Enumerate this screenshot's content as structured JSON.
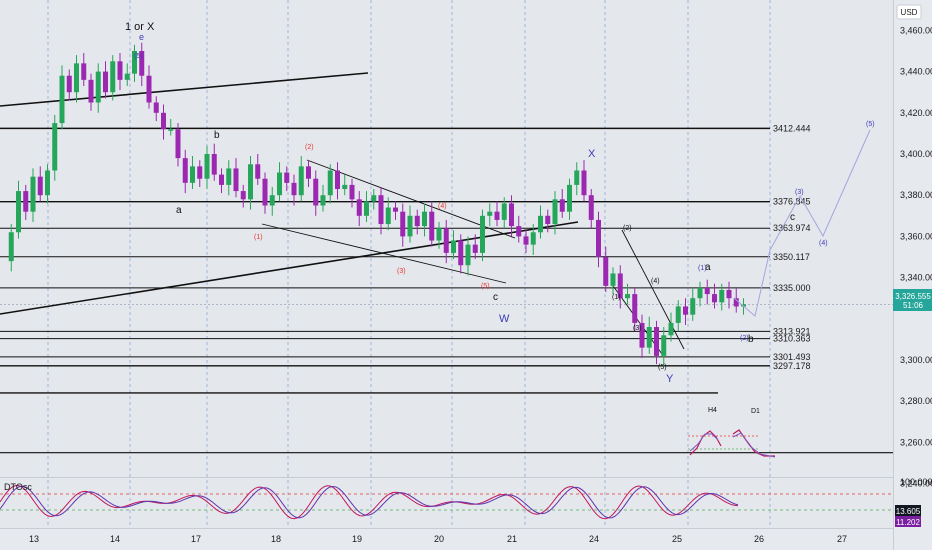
{
  "price_axis": {
    "currency": "USD",
    "ticks": [
      3460,
      3440,
      3420,
      3400,
      3380,
      3360,
      3340,
      3300,
      3280,
      3260,
      3240
    ],
    "tick_labels": [
      "3,460.000",
      "3,440.000",
      "3,420.000",
      "3,400.000",
      "3,380.000",
      "3,360.000",
      "3,340.000",
      "3,300.000",
      "3,280.000",
      "3,260.000",
      "3,240.000"
    ],
    "current_price": "3,326.555",
    "countdown": "51:06"
  },
  "time_axis": {
    "labels": [
      "13",
      "14",
      "17",
      "18",
      "19",
      "20",
      "21",
      "24",
      "25",
      "26",
      "27"
    ]
  },
  "oscillator": {
    "name": "DTOsc",
    "top_label": "100.000",
    "value_1": "13.605",
    "value_2": "11.202",
    "upper_level": 70,
    "lower_level": 30
  },
  "levels": [
    {
      "value": "3412.444",
      "price": 3412.444
    },
    {
      "value": "3376.845",
      "price": 3376.845
    },
    {
      "value": "3363.974",
      "price": 3363.974
    },
    {
      "value": "3350.117",
      "price": 3350.117
    },
    {
      "value": "3335.000",
      "price": 3335.0
    },
    {
      "value": "3313.921",
      "price": 3313.921
    },
    {
      "value": "3310.363",
      "price": 3310.363
    },
    {
      "value": "3301.493",
      "price": 3301.493
    },
    {
      "value": "3297.178",
      "price": 3297.178
    }
  ],
  "wave_labels": {
    "top_title": "1 or X",
    "e": "e",
    "p5_top": "(5)",
    "b": "b",
    "a_low": "a",
    "p2_red": "(2)",
    "p1_red": "(1)",
    "p4_red": "(4)",
    "p3_red": "(3)",
    "p5_red": "(5)",
    "c_low": "c",
    "W": "W",
    "X": "X",
    "p2_black": "(2)",
    "p1_black": "(1)",
    "p4_black": "(4)",
    "p3_black": "(3)",
    "p5_black": "(5)",
    "Y": "Y",
    "p1_blue": "(1)",
    "a_right": "a",
    "p2_blue": "(2)",
    "b_right": "b",
    "c_right": "c",
    "p3_proj": "(3)",
    "p4_proj": "(4)",
    "p5_proj": "(5)"
  },
  "inset": {
    "h4": "H4",
    "d1": "D1"
  },
  "colors": {
    "bull": "#26a65b",
    "bear": "#9c27b0",
    "projection": "#a7a4e0",
    "wave_red": "#e53935",
    "wave_blue": "#3f3cb8"
  },
  "chart_data": {
    "type": "candlestick",
    "title": "",
    "ylabel": "",
    "ylim": [
      3230,
      3475
    ],
    "close_series": [
      3348,
      3362,
      3382,
      3372,
      3389,
      3380,
      3392,
      3415,
      3438,
      3430,
      3444,
      3436,
      3425,
      3440,
      3430,
      3445,
      3436,
      3439,
      3450,
      3438,
      3425,
      3420,
      3412,
      3412,
      3398,
      3386,
      3394,
      3388,
      3400,
      3390,
      3385,
      3393,
      3382,
      3378,
      3395,
      3388,
      3375,
      3380,
      3391,
      3386,
      3380,
      3394,
      3388,
      3375,
      3380,
      3392,
      3383,
      3385,
      3378,
      3370,
      3377,
      3380,
      3366,
      3374,
      3372,
      3360,
      3370,
      3365,
      3372,
      3358,
      3364,
      3352,
      3358,
      3346,
      3356,
      3352,
      3370,
      3372,
      3368,
      3376,
      3365,
      3360,
      3356,
      3362,
      3370,
      3366,
      3378,
      3372,
      3385,
      3392,
      3380,
      3368,
      3350,
      3336,
      3342,
      3330,
      3332,
      3318,
      3306,
      3316,
      3302,
      3312,
      3318,
      3326,
      3322,
      3330,
      3335,
      3332,
      3328,
      3334,
      3330,
      3326,
      3327
    ]
  }
}
